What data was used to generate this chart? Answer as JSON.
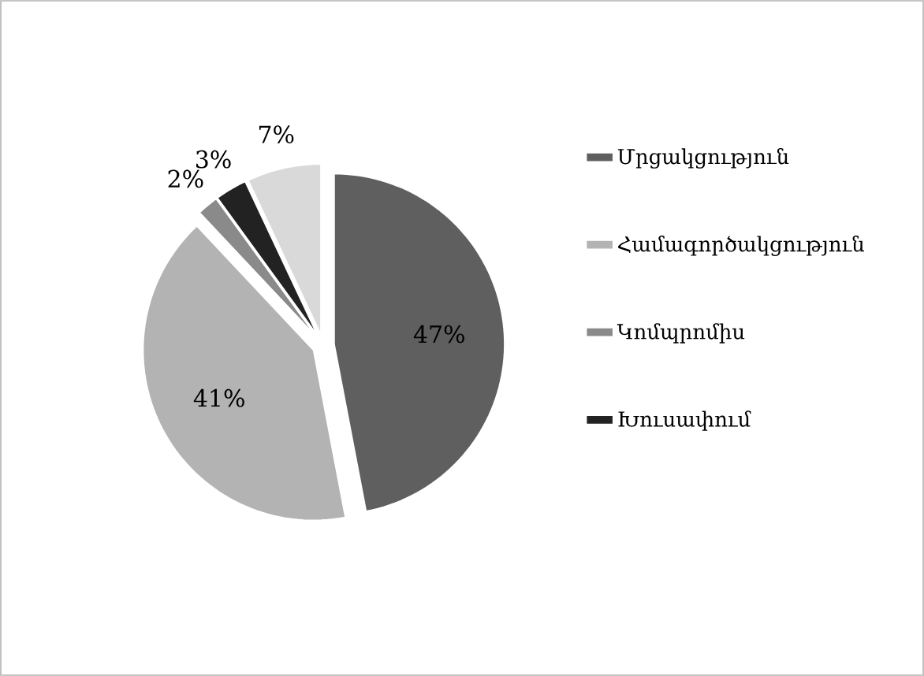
{
  "chart_data": {
    "type": "pie",
    "categories": [
      "Մրցակցություն",
      "Համագործակցություն",
      "Կոմպրոմիս",
      "Խուսափում",
      null
    ],
    "values": [
      47,
      41,
      2,
      3,
      7
    ],
    "colors": [
      "#5f5f5f",
      "#b3b3b3",
      "#8a8a8a",
      "#222222",
      "#d9d9d9"
    ],
    "value_labels": [
      "47%",
      "41%",
      "2%",
      "3%",
      "7%"
    ],
    "legend": "right"
  }
}
